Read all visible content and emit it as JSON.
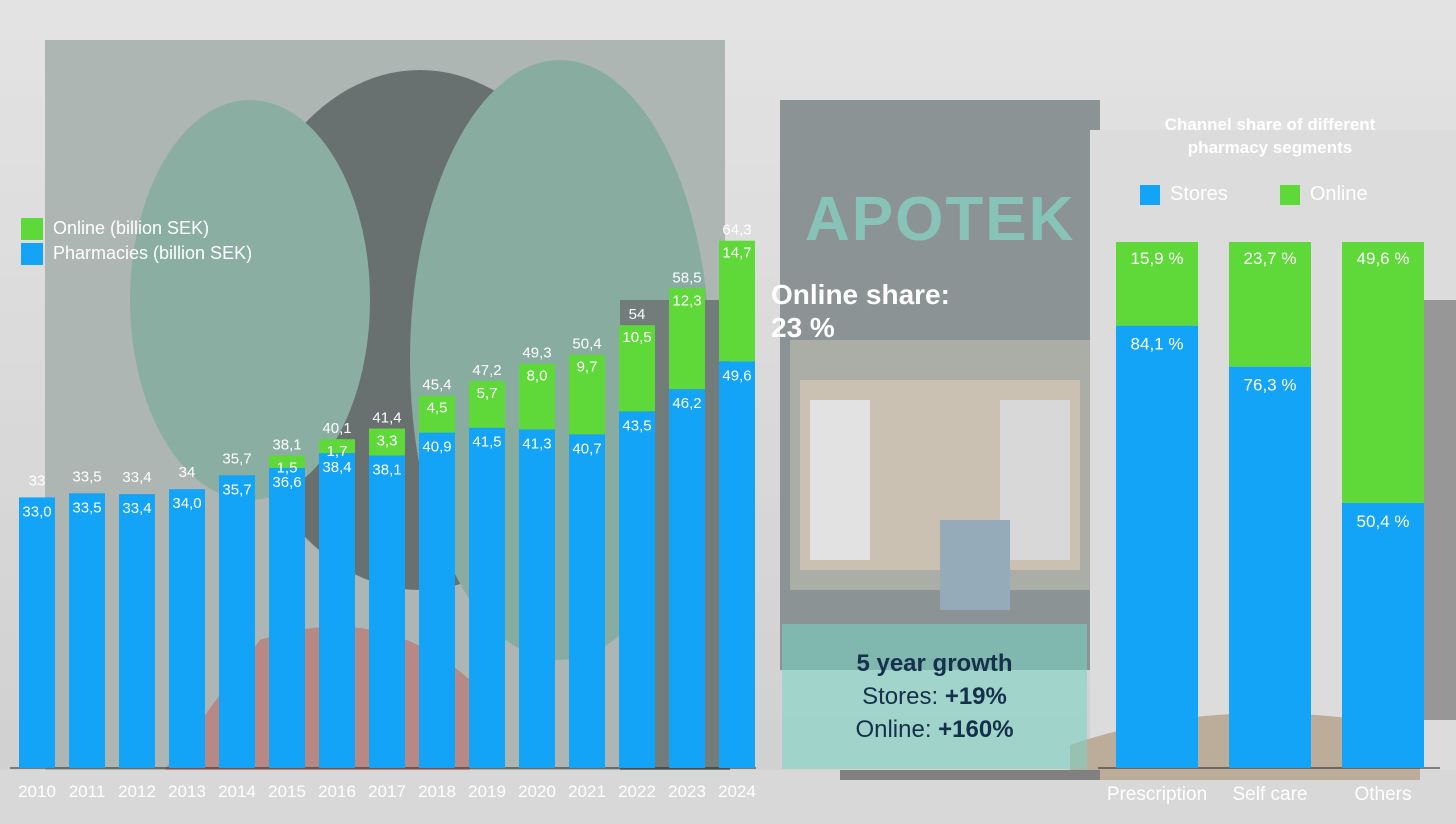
{
  "colors": {
    "pharmacies": "#13a3f7",
    "online": "#5fd83a",
    "label_text": "#ffffff"
  },
  "background": {
    "store_sign": "APOTEK"
  },
  "annotation": {
    "online_share_line1": "Online share:",
    "online_share_line2": "23 %"
  },
  "growth_box": {
    "title": "5 year growth",
    "stores_label": "Stores: ",
    "stores_value": "+19%",
    "online_label": "Online: ",
    "online_value": "+160%"
  },
  "chart_data": [
    {
      "type": "bar",
      "stacked": true,
      "categories": [
        "2010",
        "2011",
        "2012",
        "2013",
        "2014",
        "2015",
        "2016",
        "2017",
        "2018",
        "2019",
        "2020",
        "2021",
        "2022",
        "2023",
        "2024"
      ],
      "series": [
        {
          "name": "Pharmacies (billion SEK)",
          "values": [
            33.0,
            33.5,
            33.4,
            34.0,
            35.7,
            36.6,
            38.4,
            38.1,
            40.9,
            41.5,
            41.3,
            40.7,
            43.5,
            46.2,
            49.6
          ],
          "labels": [
            "33,0",
            "33,5",
            "33,4",
            "34,0",
            "35,7",
            "36,6",
            "38,4",
            "38,1",
            "40,9",
            "41,5",
            "41,3",
            "40,7",
            "43,5",
            "46,2",
            "49,6"
          ]
        },
        {
          "name": "Online (billion SEK)",
          "values": [
            0,
            0,
            0,
            0,
            0,
            1.5,
            1.7,
            3.3,
            4.5,
            5.7,
            8.0,
            9.7,
            10.5,
            12.3,
            14.7
          ],
          "labels": [
            "",
            "",
            "",
            "",
            "",
            "1,5",
            "1,7",
            "3,3",
            "4,5",
            "5,7",
            "8,0",
            "9,7",
            "10,5",
            "12,3",
            "14,7"
          ]
        }
      ],
      "totals": [
        "33",
        "33,5",
        "33,4",
        "34",
        "35,7",
        "38,1",
        "40,1",
        "41,4",
        "45,4",
        "47,2",
        "49,3",
        "50,4",
        "54",
        "58,5",
        "64,3"
      ],
      "legend": [
        "Online (billion SEK)",
        "Pharmacies (billion SEK)"
      ],
      "legend_placement": "top-left",
      "grid": false
    },
    {
      "type": "bar",
      "stacked": true,
      "percent": true,
      "title_line1": "Channel share of different",
      "title_line2": "pharmacy segments",
      "categories": [
        "Prescription",
        "Self care",
        "Others"
      ],
      "series": [
        {
          "name": "Stores",
          "values": [
            84.1,
            76.3,
            50.4
          ],
          "labels": [
            "84,1 %",
            "76,3 %",
            "50,4 %"
          ]
        },
        {
          "name": "Online",
          "values": [
            15.9,
            23.7,
            49.6
          ],
          "labels": [
            "15,9 %",
            "23,7 %",
            "49,6 %"
          ]
        }
      ],
      "legend": [
        "Stores",
        "Online"
      ],
      "legend_placement": "top",
      "ylim": [
        0,
        100
      ],
      "grid": false
    }
  ]
}
